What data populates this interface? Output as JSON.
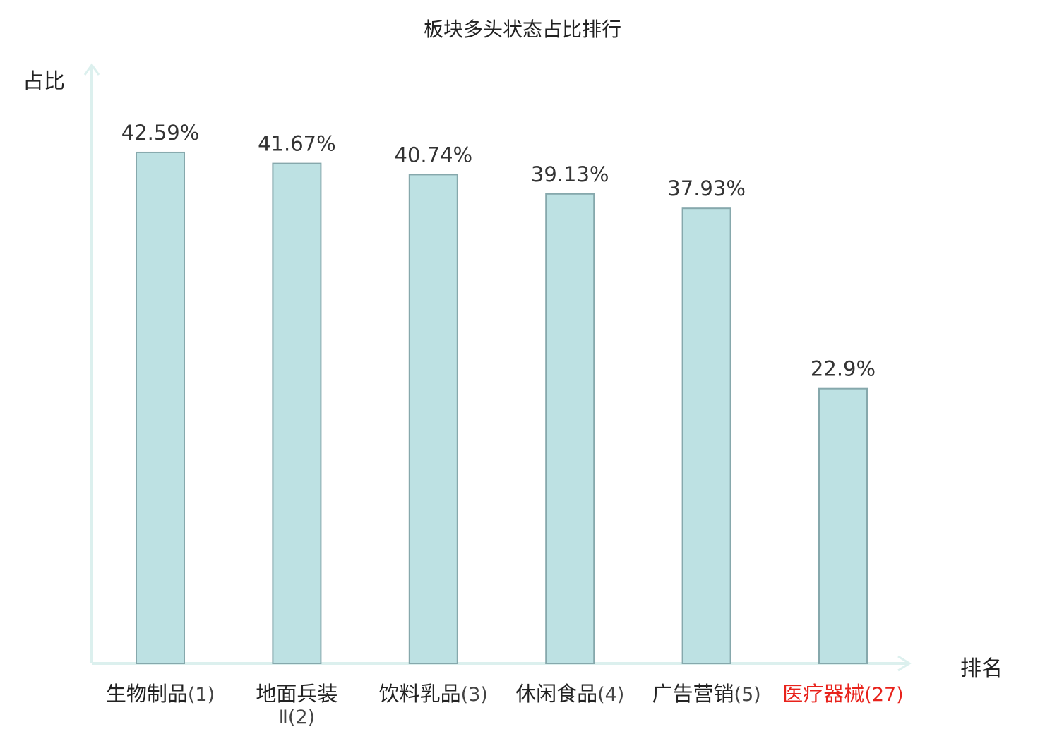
{
  "chart_data": {
    "type": "bar",
    "title": "板块多头状态占比排行",
    "ylabel": "占比",
    "xlabel": "排名",
    "ylim": [
      0,
      50
    ],
    "grid": false,
    "categories": [
      {
        "name": "生物制品",
        "rank": "(1)"
      },
      {
        "name": "地面兵装",
        "name2": "Ⅱ",
        "rank": "(2)"
      },
      {
        "name": "饮料乳品",
        "rank": "(3)"
      },
      {
        "name": "休闲食品",
        "rank": "(4)"
      },
      {
        "name": "广告营销",
        "rank": "(5)"
      },
      {
        "name": "医疗器械",
        "rank": "(27)",
        "highlight": true
      }
    ],
    "values": [
      42.59,
      41.67,
      40.74,
      39.13,
      37.93,
      22.9
    ],
    "value_labels": [
      "42.59%",
      "41.67%",
      "40.74%",
      "39.13%",
      "37.93%",
      "22.9%"
    ]
  },
  "colors": {
    "bar_fill": "#bde1e3",
    "bar_stroke": "#86a8ac",
    "axis": "#dcf0ee",
    "highlight_text": "#e8221b",
    "text": "#222222"
  }
}
